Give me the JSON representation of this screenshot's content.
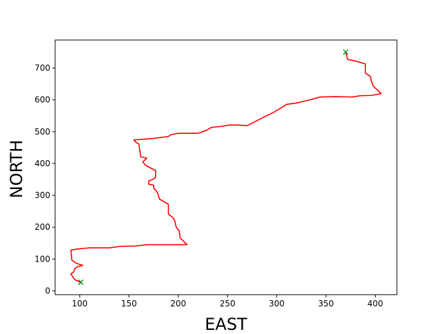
{
  "chart_data": {
    "type": "line",
    "title": "",
    "xlabel": "EAST",
    "ylabel": "NORTH",
    "xlim": [
      75,
      422
    ],
    "ylim": [
      -12,
      788
    ],
    "x_ticks": [
      100,
      150,
      200,
      250,
      300,
      350,
      400
    ],
    "y_ticks": [
      0,
      100,
      200,
      300,
      400,
      500,
      600,
      700
    ],
    "grid": false,
    "series": [
      {
        "color": "#ff0000",
        "points": [
          [
            101,
            27
          ],
          [
            95,
            35
          ],
          [
            91,
            53
          ],
          [
            94,
            60
          ],
          [
            95,
            70
          ],
          [
            98,
            76
          ],
          [
            103,
            80
          ],
          [
            97,
            86
          ],
          [
            92,
            96
          ],
          [
            91,
            128
          ],
          [
            99,
            132
          ],
          [
            110,
            135
          ],
          [
            130,
            135
          ],
          [
            142,
            140
          ],
          [
            157,
            141
          ],
          [
            168,
            145
          ],
          [
            209,
            145
          ],
          [
            202,
            166
          ],
          [
            201,
            188
          ],
          [
            198,
            200
          ],
          [
            196,
            225
          ],
          [
            193,
            234
          ],
          [
            190,
            241
          ],
          [
            190,
            272
          ],
          [
            181,
            288
          ],
          [
            179,
            308
          ],
          [
            178,
            313
          ],
          [
            175,
            323
          ],
          [
            175,
            332
          ],
          [
            170,
            335
          ],
          [
            170,
            345
          ],
          [
            174,
            350
          ],
          [
            177,
            356
          ],
          [
            177,
            378
          ],
          [
            167,
            394
          ],
          [
            164,
            405
          ],
          [
            168,
            417
          ],
          [
            162,
            421
          ],
          [
            161,
            441
          ],
          [
            160,
            461
          ],
          [
            157,
            467
          ],
          [
            155,
            474
          ],
          [
            175,
            479
          ],
          [
            190,
            485
          ],
          [
            193,
            491
          ],
          [
            200,
            495
          ],
          [
            220,
            495
          ],
          [
            225,
            500
          ],
          [
            229,
            505
          ],
          [
            232,
            511
          ],
          [
            235,
            514
          ],
          [
            242,
            516
          ],
          [
            252,
            521
          ],
          [
            260,
            521
          ],
          [
            270,
            519
          ],
          [
            287,
            546
          ],
          [
            297,
            561
          ],
          [
            305,
            576
          ],
          [
            310,
            586
          ],
          [
            320,
            590
          ],
          [
            335,
            601
          ],
          [
            344,
            609
          ],
          [
            360,
            610
          ],
          [
            377,
            609
          ],
          [
            385,
            613
          ],
          [
            396,
            614
          ],
          [
            402,
            617
          ],
          [
            406,
            620
          ],
          [
            398,
            643
          ],
          [
            396,
            660
          ],
          [
            395,
            674
          ],
          [
            390,
            684
          ],
          [
            390,
            713
          ],
          [
            380,
            722
          ],
          [
            372,
            727
          ],
          [
            370,
            750
          ]
        ]
      }
    ],
    "markers": {
      "symbol": "x",
      "color": "#008000",
      "points": [
        [
          101,
          27
        ],
        [
          370,
          750
        ]
      ]
    }
  }
}
